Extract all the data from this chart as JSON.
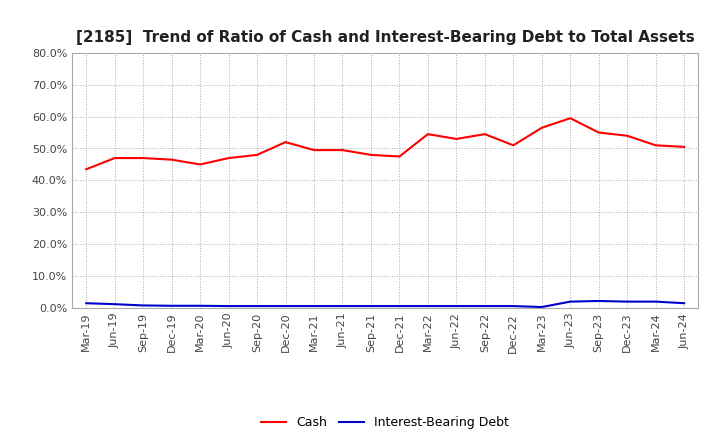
{
  "title": "[2185]  Trend of Ratio of Cash and Interest-Bearing Debt to Total Assets",
  "labels": [
    "Mar-19",
    "Jun-19",
    "Sep-19",
    "Dec-19",
    "Mar-20",
    "Jun-20",
    "Sep-20",
    "Dec-20",
    "Mar-21",
    "Jun-21",
    "Sep-21",
    "Dec-21",
    "Mar-22",
    "Jun-22",
    "Sep-22",
    "Dec-22",
    "Mar-23",
    "Jun-23",
    "Sep-23",
    "Dec-23",
    "Mar-24",
    "Jun-24"
  ],
  "cash": [
    43.5,
    47.0,
    47.0,
    46.5,
    45.0,
    47.0,
    48.0,
    52.0,
    49.5,
    49.5,
    48.0,
    47.5,
    54.5,
    53.0,
    54.5,
    51.0,
    56.5,
    59.5,
    55.0,
    54.0,
    51.0,
    50.5
  ],
  "interest_bearing_debt": [
    1.5,
    1.2,
    0.8,
    0.7,
    0.7,
    0.6,
    0.6,
    0.6,
    0.6,
    0.6,
    0.6,
    0.6,
    0.6,
    0.6,
    0.6,
    0.6,
    0.3,
    2.0,
    2.2,
    2.0,
    2.0,
    1.5
  ],
  "cash_color": "#ff0000",
  "debt_color": "#0000cd",
  "ylim": [
    0,
    80
  ],
  "yticks": [
    0,
    10,
    20,
    30,
    40,
    50,
    60,
    70,
    80
  ],
  "bg_color": "#ffffff",
  "plot_bg_color": "#ffffff",
  "grid_color": "#aaaaaa",
  "title_fontsize": 11,
  "tick_fontsize": 8,
  "legend_labels": [
    "Cash",
    "Interest-Bearing Debt"
  ]
}
